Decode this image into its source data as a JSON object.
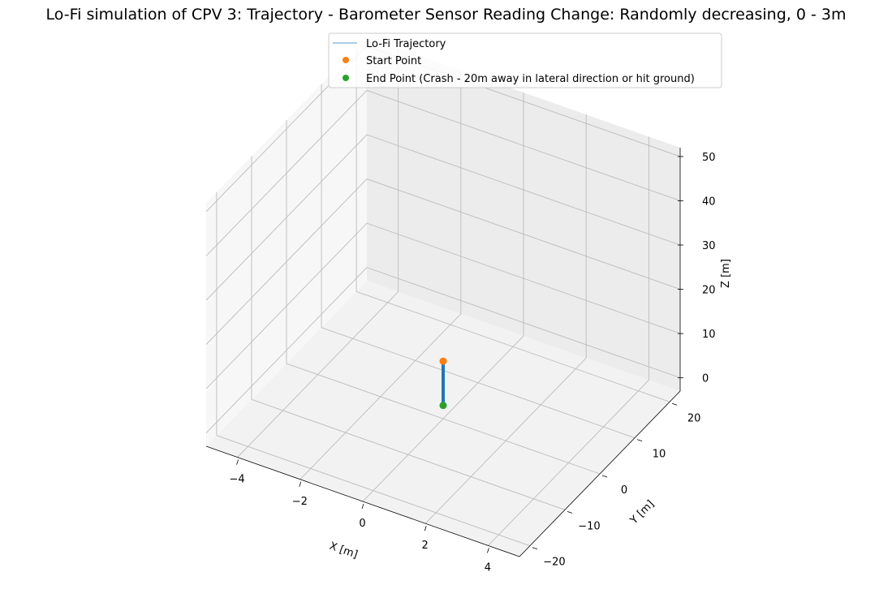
{
  "chart_data": {
    "type": "line",
    "projection": "3d",
    "title": "Lo-Fi simulation of CPV 3: Trajectory - Barometer Sensor Reading Change: Randomly decreasing, 0 - 3m",
    "xlabel": "X [m]",
    "ylabel": "Y [m]",
    "zlabel": "Z [m]",
    "xlim": [
      -5,
      5
    ],
    "ylim": [
      -23,
      23
    ],
    "zlim": [
      -3,
      52
    ],
    "xticks": [
      -4,
      -2,
      0,
      2,
      4
    ],
    "yticks": [
      -20,
      -10,
      0,
      10,
      20
    ],
    "zticks": [
      0,
      10,
      20,
      30,
      40,
      50
    ],
    "xtick_labels": [
      "−4",
      "−2",
      "0",
      "2",
      "4"
    ],
    "ytick_labels": [
      "−20",
      "−10",
      "0",
      "10",
      "20"
    ],
    "ztick_labels": [
      "0",
      "10",
      "20",
      "30",
      "40",
      "50"
    ],
    "grid": true,
    "legend_position": "top-center",
    "series": [
      {
        "name": "Lo-Fi Trajectory",
        "kind": "line",
        "color": "#1f77b4",
        "points": [
          [
            0,
            0,
            10
          ],
          [
            0,
            0,
            8
          ],
          [
            0,
            0,
            6
          ],
          [
            0,
            0,
            4
          ],
          [
            0,
            0,
            2
          ],
          [
            0,
            0,
            0
          ]
        ]
      },
      {
        "name": "Start Point",
        "kind": "scatter",
        "color": "#ff7f0e",
        "points": [
          [
            0,
            0,
            10
          ]
        ]
      },
      {
        "name": "End Point (Crash - 20m away in lateral direction or hit ground)",
        "kind": "scatter",
        "color": "#2ca02c",
        "points": [
          [
            0,
            0,
            0
          ]
        ]
      }
    ]
  }
}
